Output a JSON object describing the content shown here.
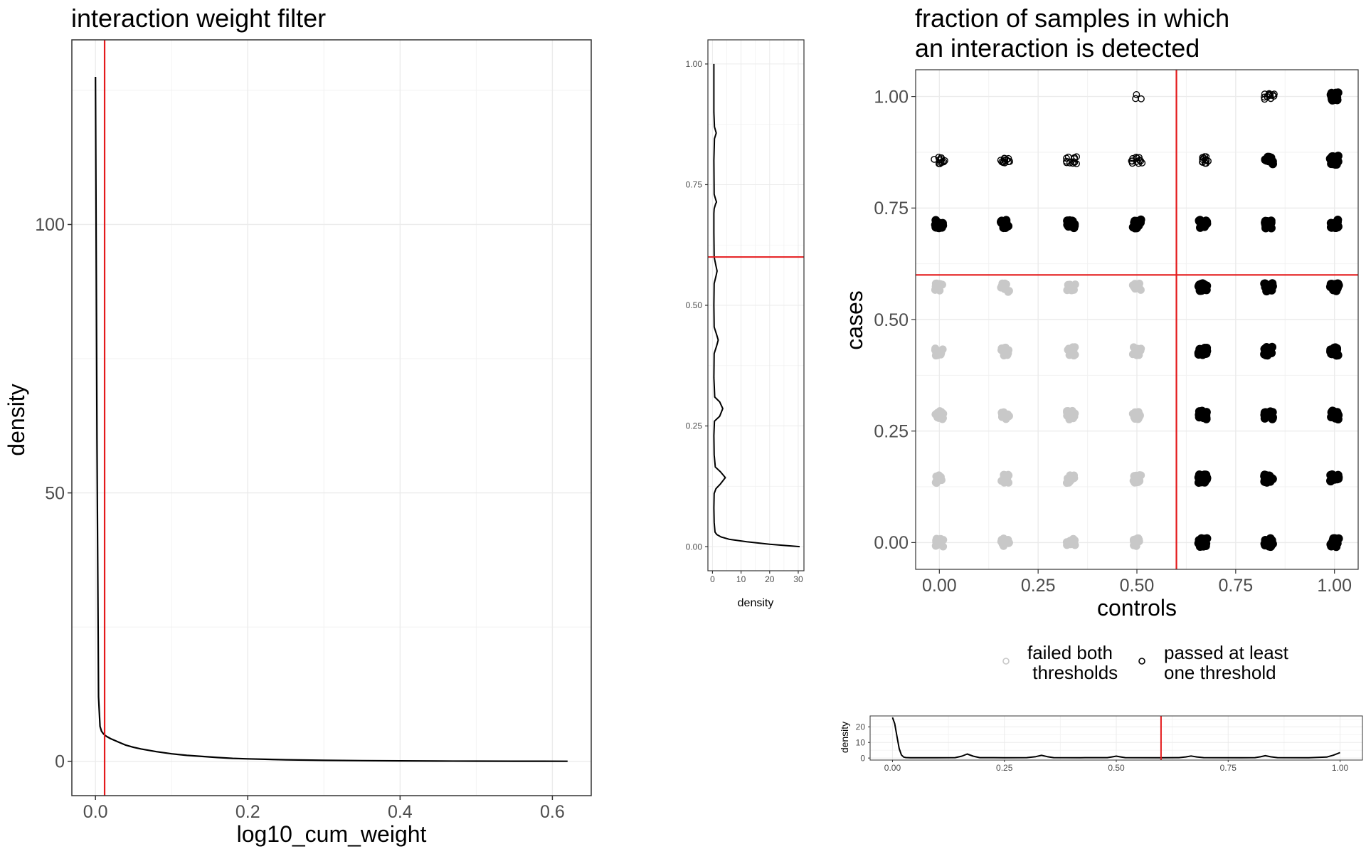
{
  "chart_data": [
    {
      "id": "weight",
      "type": "line",
      "title": "interaction weight filter",
      "xlabel": "log10_cum_weight",
      "ylabel": "density",
      "xlim": [
        -0.031,
        0.651
      ],
      "ylim": [
        -6.4,
        134.4
      ],
      "x_ticks": [
        0.0,
        0.2,
        0.4,
        0.6
      ],
      "x_tick_labels": [
        "0.0",
        "0.2",
        "0.4",
        "0.6"
      ],
      "y_ticks": [
        0,
        50,
        100
      ],
      "y_tick_labels": [
        "0",
        "50",
        "100"
      ],
      "minor_x": [
        0.1,
        0.3,
        0.5
      ],
      "minor_y": [
        25,
        75,
        125
      ],
      "threshold_x": 0.012,
      "threshold_color": "#e41a1c",
      "line_color": "#000000",
      "grid": true,
      "series": [
        {
          "x": [
            0.0,
            0.002,
            0.004,
            0.006,
            0.008,
            0.01,
            0.012,
            0.015,
            0.02,
            0.025,
            0.03,
            0.04,
            0.05,
            0.06,
            0.08,
            0.1,
            0.12,
            0.14,
            0.16,
            0.18,
            0.2,
            0.25,
            0.3,
            0.35,
            0.4,
            0.45,
            0.5,
            0.55,
            0.62
          ],
          "y": [
            127.5,
            60,
            12,
            6.5,
            5.6,
            5.2,
            4.9,
            4.6,
            4.2,
            3.9,
            3.6,
            3.0,
            2.6,
            2.3,
            1.8,
            1.4,
            1.1,
            0.9,
            0.7,
            0.55,
            0.45,
            0.28,
            0.18,
            0.12,
            0.08,
            0.05,
            0.03,
            0.02,
            0.01
          ]
        }
      ]
    },
    {
      "id": "marginal_y",
      "type": "line",
      "xlabel": "density",
      "ylabel": "",
      "xlim": [
        -1.6,
        32.0
      ],
      "ylim": [
        -0.05,
        1.05
      ],
      "x_ticks": [
        0,
        10,
        20,
        30
      ],
      "x_tick_labels": [
        "0",
        "10",
        "20",
        "30"
      ],
      "y_ticks": [
        0.0,
        0.25,
        0.5,
        0.75,
        1.0
      ],
      "y_tick_labels": [
        "0.00",
        "0.25",
        "0.50",
        "0.75",
        "1.00"
      ],
      "minor_x": [
        5,
        15,
        25
      ],
      "minor_y": [
        0.125,
        0.375,
        0.625,
        0.875
      ],
      "threshold_y": 0.6,
      "threshold_color": "#e41a1c",
      "grid": true,
      "series": [
        {
          "x": [
            30.5,
            20,
            12,
            6,
            3,
            1.5,
            0.9,
            0.6,
            0.5,
            0.6,
            1.2,
            2.8,
            4.5,
            2.8,
            1.0,
            0.6,
            0.5,
            0.7,
            2.5,
            3.6,
            2.5,
            0.8,
            0.5,
            0.6,
            1.4,
            2.0,
            1.4,
            0.6,
            0.5,
            0.6,
            1.2,
            1.6,
            1.2,
            0.6,
            0.5,
            0.5,
            0.6,
            1.1,
            1.4,
            1.1,
            0.6,
            0.5,
            0.7,
            1.3,
            0.7,
            0.5,
            0.5
          ],
          "y": [
            0.0,
            0.005,
            0.01,
            0.015,
            0.02,
            0.025,
            0.03,
            0.05,
            0.08,
            0.11,
            0.12,
            0.13,
            0.143,
            0.155,
            0.165,
            0.19,
            0.23,
            0.26,
            0.27,
            0.286,
            0.3,
            0.31,
            0.35,
            0.4,
            0.415,
            0.428,
            0.44,
            0.455,
            0.5,
            0.545,
            0.56,
            0.571,
            0.582,
            0.6,
            0.65,
            0.69,
            0.7,
            0.71,
            0.714,
            0.72,
            0.73,
            0.8,
            0.845,
            0.857,
            0.87,
            0.9,
            1.0
          ]
        }
      ]
    },
    {
      "id": "scatter",
      "type": "scatter",
      "title_lines": [
        "fraction of samples in which",
        "an interaction is detected"
      ],
      "xlabel": "controls",
      "ylabel": "cases",
      "xlim": [
        -0.06,
        1.06
      ],
      "ylim": [
        -0.06,
        1.06
      ],
      "x_ticks": [
        0.0,
        0.25,
        0.5,
        0.75,
        1.0
      ],
      "x_tick_labels": [
        "0.00",
        "0.25",
        "0.50",
        "0.75",
        "1.00"
      ],
      "y_ticks": [
        0.0,
        0.25,
        0.5,
        0.75,
        1.0
      ],
      "y_tick_labels": [
        "0.00",
        "0.25",
        "0.50",
        "0.75",
        "1.00"
      ],
      "minor_x": [
        0.125,
        0.375,
        0.625,
        0.875
      ],
      "minor_y": [
        0.125,
        0.375,
        0.625,
        0.875
      ],
      "threshold_x": 0.6,
      "threshold_y": 0.6,
      "threshold_color": "#e41a1c",
      "grid": true,
      "control_levels": [
        0.0,
        0.1667,
        0.3333,
        0.5,
        0.6667,
        0.8333,
        1.0
      ],
      "case_levels": [
        0.0,
        0.1429,
        0.2857,
        0.4286,
        0.5714,
        0.7143,
        0.8571,
        1.0
      ],
      "sparse_cells": [
        [
          0.0,
          0.8571
        ],
        [
          0.1667,
          0.8571
        ],
        [
          0.3333,
          0.8571
        ],
        [
          0.5,
          0.8571
        ],
        [
          0.6667,
          0.8571
        ],
        [
          0.5,
          1.0
        ],
        [
          0.8333,
          1.0
        ]
      ],
      "empty_cells": [
        [
          0.0,
          1.0
        ],
        [
          0.1667,
          1.0
        ],
        [
          0.3333,
          1.0
        ],
        [
          0.6667,
          1.0
        ]
      ],
      "legend": {
        "position": "bottom",
        "items": [
          {
            "label_lines": [
              "failed both",
              " thresholds"
            ],
            "color": "#c8c8c8",
            "status": "failed"
          },
          {
            "label_lines": [
              "passed at least",
              "one threshold"
            ],
            "color": "#000000",
            "status": "passed"
          }
        ]
      },
      "colors": {
        "failed": "#c8c8c8",
        "passed": "#000000"
      }
    },
    {
      "id": "marginal_x",
      "type": "line",
      "ylabel": "density",
      "xlabel": "",
      "xlim": [
        -0.05,
        1.05
      ],
      "ylim": [
        -1.3,
        27.0
      ],
      "x_ticks": [
        0.0,
        0.25,
        0.5,
        0.75,
        1.0
      ],
      "x_tick_labels": [
        "0.00",
        "0.25",
        "0.50",
        "0.75",
        "1.00"
      ],
      "y_ticks": [
        0,
        10,
        20
      ],
      "y_tick_labels": [
        "0",
        "10",
        "20"
      ],
      "minor_x": [
        0.125,
        0.375,
        0.625,
        0.875
      ],
      "minor_y": [
        5,
        15,
        25
      ],
      "threshold_x": 0.6,
      "threshold_color": "#e41a1c",
      "grid": true,
      "series": [
        {
          "x": [
            0.0,
            0.005,
            0.01,
            0.015,
            0.02,
            0.025,
            0.03,
            0.04,
            0.06,
            0.1,
            0.14,
            0.155,
            0.167,
            0.18,
            0.195,
            0.25,
            0.3,
            0.32,
            0.333,
            0.346,
            0.36,
            0.42,
            0.48,
            0.49,
            0.5,
            0.51,
            0.52,
            0.6,
            0.64,
            0.655,
            0.667,
            0.68,
            0.695,
            0.78,
            0.81,
            0.822,
            0.833,
            0.845,
            0.86,
            0.93,
            0.97,
            0.985,
            1.0
          ],
          "y": [
            26,
            22,
            14,
            6,
            2.0,
            0.6,
            0.3,
            0.2,
            0.2,
            0.2,
            0.25,
            1.2,
            2.6,
            1.2,
            0.25,
            0.2,
            0.25,
            0.9,
            1.7,
            0.9,
            0.25,
            0.2,
            0.25,
            0.7,
            1.2,
            0.7,
            0.25,
            0.2,
            0.25,
            0.7,
            1.3,
            0.7,
            0.25,
            0.2,
            0.25,
            0.8,
            1.5,
            0.8,
            0.25,
            0.2,
            0.6,
            1.8,
            3.5
          ]
        }
      ]
    }
  ]
}
